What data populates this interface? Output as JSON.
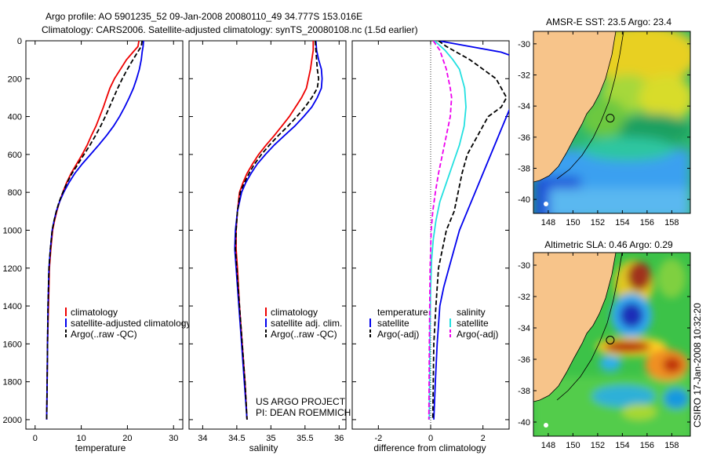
{
  "header": {
    "line1": "Argo profile: AO 5901235_52 09-Jan-2008 20080110_49 34.777S 153.016E",
    "line2": "Climatology: CARS2006. Satellite-adjusted climatology: synTS_20080108.nc (1.5d earlier)"
  },
  "colors": {
    "red": "#ee0000",
    "blue": "#0000ee",
    "black": "#000000",
    "cyan": "#22e0e0",
    "magenta": "#ee00ee",
    "land": "#f7c48a"
  },
  "chart_data": [
    {
      "type": "line",
      "xlabel": "temperature",
      "ylabel": "",
      "xlim": [
        -2,
        32
      ],
      "ylim": [
        2050,
        0
      ],
      "xticks": [
        0,
        10,
        20,
        30
      ],
      "yticks": [
        0,
        200,
        400,
        600,
        800,
        1000,
        1200,
        1400,
        1600,
        1800,
        2000
      ],
      "legend": [
        "climatology",
        "satellite-adjusted climatology",
        "Argo(..raw -QC)"
      ],
      "series": [
        {
          "name": "climatology",
          "color": "red",
          "dash": false,
          "x": [
            22.5,
            22.3,
            21.2,
            19.8,
            18.5,
            17.2,
            16.2,
            15.5,
            14.8,
            14.0,
            13.2,
            12.2,
            11.3,
            10.2,
            9.0,
            7.8,
            6.8,
            6.0,
            5.3,
            4.7,
            4.2,
            3.8,
            3.4,
            3.1,
            2.9,
            2.7,
            2.6,
            2.5
          ],
          "y": [
            0,
            30,
            60,
            100,
            150,
            200,
            250,
            300,
            350,
            400,
            450,
            500,
            550,
            600,
            650,
            700,
            750,
            800,
            850,
            900,
            950,
            1000,
            1100,
            1200,
            1400,
            1600,
            1800,
            2000
          ]
        },
        {
          "name": "satellite-adjusted climatology",
          "color": "blue",
          "dash": false,
          "x": [
            23.5,
            23.4,
            23.2,
            23.0,
            22.6,
            22.0,
            21.3,
            20.4,
            19.4,
            18.3,
            17.0,
            15.5,
            13.8,
            12.0,
            10.2,
            8.6,
            7.3,
            6.2,
            5.3,
            4.6,
            4.1,
            3.7,
            3.3,
            3.0,
            2.8,
            2.7,
            2.6,
            2.5
          ],
          "y": [
            0,
            30,
            60,
            100,
            150,
            200,
            250,
            300,
            350,
            400,
            450,
            500,
            550,
            600,
            650,
            700,
            750,
            800,
            850,
            900,
            950,
            1000,
            1100,
            1200,
            1400,
            1600,
            1800,
            2000
          ]
        },
        {
          "name": "Argo(..raw -QC)",
          "color": "black",
          "dash": true,
          "x": [
            23.2,
            23.0,
            22.2,
            21.2,
            20.0,
            18.9,
            17.9,
            17.0,
            16.1,
            15.2,
            14.2,
            13.1,
            11.9,
            10.6,
            9.3,
            8.0,
            6.9,
            6.0,
            5.2,
            4.6,
            4.1,
            3.7,
            3.3,
            3.0,
            2.8,
            2.7,
            2.6,
            2.5
          ],
          "y": [
            0,
            30,
            60,
            100,
            150,
            200,
            250,
            300,
            350,
            400,
            450,
            500,
            550,
            600,
            650,
            700,
            750,
            800,
            850,
            900,
            950,
            1000,
            1100,
            1200,
            1400,
            1600,
            1800,
            2000
          ]
        }
      ]
    },
    {
      "type": "line",
      "xlabel": "salinity",
      "ylabel": "",
      "xlim": [
        33.8,
        36.1
      ],
      "ylim": [
        2050,
        0
      ],
      "xticks": [
        34,
        34.5,
        35,
        35.5,
        36
      ],
      "legend": [
        "climatology",
        "satellite adj. clim.",
        "Argo(..raw -QC)"
      ],
      "annotation": [
        "US ARGO PROJECT",
        "PI: DEAN ROEMMICH"
      ],
      "series": [
        {
          "name": "climatology",
          "color": "red",
          "dash": false,
          "x": [
            35.62,
            35.62,
            35.6,
            35.58,
            35.55,
            35.52,
            35.45,
            35.36,
            35.27,
            35.16,
            35.05,
            34.93,
            34.82,
            34.73,
            34.65,
            34.59,
            34.54,
            34.51,
            34.49,
            34.49,
            34.51,
            34.54,
            34.58,
            34.62,
            34.65
          ],
          "y": [
            0,
            50,
            100,
            150,
            200,
            250,
            300,
            350,
            400,
            450,
            500,
            550,
            600,
            650,
            700,
            750,
            800,
            900,
            1000,
            1100,
            1200,
            1400,
            1600,
            1800,
            2000
          ]
        },
        {
          "name": "satellite adj. clim.",
          "color": "blue",
          "dash": false,
          "x": [
            35.66,
            35.67,
            35.7,
            35.74,
            35.75,
            35.74,
            35.68,
            35.6,
            35.48,
            35.35,
            35.2,
            35.05,
            34.92,
            34.8,
            34.71,
            34.63,
            34.57,
            34.51,
            34.48,
            34.47,
            34.49,
            34.53,
            34.57,
            34.61,
            34.65
          ],
          "y": [
            0,
            50,
            100,
            150,
            200,
            250,
            300,
            350,
            400,
            450,
            500,
            550,
            600,
            650,
            700,
            750,
            800,
            900,
            1000,
            1100,
            1200,
            1400,
            1600,
            1800,
            2000
          ]
        },
        {
          "name": "Argo(..raw -QC)",
          "color": "black",
          "dash": true,
          "x": [
            35.65,
            35.66,
            35.67,
            35.68,
            35.7,
            35.68,
            35.6,
            35.5,
            35.38,
            35.25,
            35.11,
            34.98,
            34.86,
            34.76,
            34.68,
            34.61,
            34.55,
            34.51,
            34.49,
            34.48,
            34.5,
            34.54,
            34.58,
            34.62,
            34.65
          ],
          "y": [
            0,
            50,
            100,
            150,
            200,
            250,
            300,
            350,
            400,
            450,
            500,
            550,
            600,
            650,
            700,
            750,
            800,
            900,
            1000,
            1100,
            1200,
            1400,
            1600,
            1800,
            2000
          ]
        }
      ]
    },
    {
      "type": "line",
      "xlabel": "difference from climatology",
      "ylabel": "",
      "xlim": [
        -3,
        3
      ],
      "ylim": [
        2050,
        0
      ],
      "xticks": [
        -2,
        0,
        2
      ],
      "legend_groups": [
        {
          "title": "temperature",
          "items": [
            "satellite",
            "Argo(-adj)"
          ]
        },
        {
          "title": "salinity",
          "items": [
            "satellite",
            "Argo(-adj)"
          ]
        }
      ],
      "series": [
        {
          "name": "temperature satellite",
          "color": "blue",
          "dash": false,
          "x": [
            0.3,
            1.5,
            2.7,
            3.5,
            3.6,
            3.2,
            2.9,
            2.6,
            2.3,
            2.0,
            1.7,
            1.4,
            1.1,
            0.9,
            0.7,
            0.5,
            0.35,
            0.25,
            0.18,
            0.12
          ],
          "y": [
            0,
            30,
            60,
            100,
            200,
            300,
            400,
            500,
            600,
            700,
            800,
            900,
            1000,
            1100,
            1200,
            1300,
            1400,
            1600,
            1800,
            2000
          ]
        },
        {
          "name": "temperature Argo(-adj)",
          "color": "black",
          "dash": true,
          "x": [
            0.3,
            0.6,
            1.5,
            2.5,
            2.9,
            2.7,
            2.2,
            1.8,
            1.4,
            1.2,
            1.05,
            0.9,
            0.6,
            0.45,
            0.3,
            0.2,
            0.12,
            0.08
          ],
          "y": [
            0,
            30,
            100,
            200,
            300,
            350,
            400,
            500,
            600,
            700,
            800,
            900,
            1000,
            1100,
            1200,
            1400,
            1600,
            2000
          ]
        },
        {
          "name": "salinity satellite",
          "color": "cyan",
          "dash": false,
          "x": [
            0.15,
            0.55,
            0.85,
            1.1,
            1.3,
            1.35,
            1.28,
            1.1,
            0.85,
            0.6,
            0.35,
            0.2,
            0.1,
            0.04,
            0.0,
            -0.03,
            -0.05
          ],
          "y": [
            0,
            50,
            100,
            150,
            250,
            350,
            450,
            550,
            650,
            750,
            850,
            950,
            1050,
            1150,
            1300,
            1600,
            2000
          ]
        },
        {
          "name": "salinity Argo(-adj)",
          "color": "magenta",
          "dash": true,
          "x": [
            0.1,
            0.35,
            0.6,
            0.75,
            0.8,
            0.75,
            0.6,
            0.45,
            0.3,
            0.18,
            0.08,
            0.02,
            -0.02,
            -0.05,
            -0.07
          ],
          "y": [
            0,
            50,
            150,
            250,
            300,
            400,
            500,
            600,
            700,
            800,
            900,
            1000,
            1200,
            1600,
            2000
          ]
        }
      ]
    },
    {
      "type": "heatmap",
      "title": "AMSR-E SST: 23.5 Argo: 23.4",
      "xticks": [
        148,
        150,
        152,
        154,
        156,
        158
      ],
      "yticks": [
        -30,
        -32,
        -34,
        -36,
        -38,
        -40
      ],
      "xlim": [
        146.8,
        159.5
      ],
      "ylim": [
        -40.9,
        -29.2
      ],
      "float_marker": {
        "lon": 153.016,
        "lat": -34.777
      }
    },
    {
      "type": "heatmap",
      "title": "Altimetric SLA: 0.46 Argo: 0.29",
      "xticks": [
        148,
        150,
        152,
        154,
        156,
        158
      ],
      "yticks": [
        -30,
        -32,
        -34,
        -36,
        -38,
        -40
      ],
      "xlim": [
        146.8,
        159.5
      ],
      "ylim": [
        -40.9,
        -29.2
      ],
      "float_marker": {
        "lon": 153.016,
        "lat": -34.777
      }
    }
  ],
  "side_stamp": "CSIRO 17-Jan-2008 10:32:20"
}
